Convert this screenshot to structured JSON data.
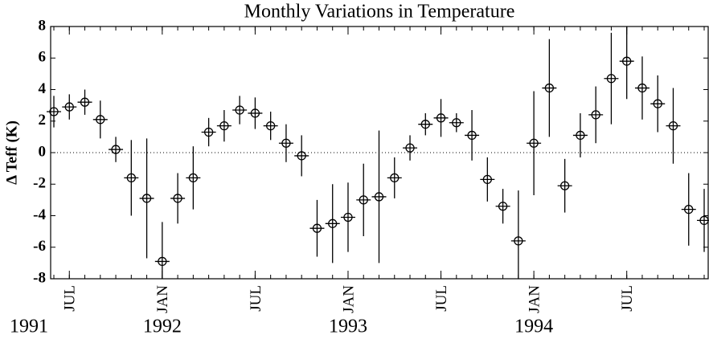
{
  "chart_data": {
    "type": "errorbar_scatter",
    "title": "Monthly Variations in Temperature",
    "ylabel": "Δ Teff (K)",
    "x": [
      "1991-06",
      "1991-07",
      "1991-08",
      "1991-09",
      "1991-10",
      "1991-11",
      "1991-12",
      "1992-01",
      "1992-02",
      "1992-03",
      "1992-04",
      "1992-05",
      "1992-06",
      "1992-07",
      "1992-08",
      "1992-09",
      "1992-10",
      "1992-11",
      "1992-12",
      "1993-01",
      "1993-02",
      "1993-03",
      "1993-04",
      "1993-05",
      "1993-06",
      "1993-07",
      "1993-08",
      "1993-09",
      "1993-10",
      "1993-11",
      "1993-12",
      "1994-01",
      "1994-02",
      "1994-03",
      "1994-04",
      "1994-05",
      "1994-06",
      "1994-07",
      "1994-08",
      "1994-09",
      "1994-10",
      "1994-11",
      "1994-12"
    ],
    "values": [
      2.6,
      2.9,
      3.2,
      2.1,
      0.2,
      -1.6,
      -2.9,
      -6.9,
      -2.9,
      -1.6,
      1.3,
      1.7,
      2.7,
      2.5,
      1.7,
      0.6,
      -0.2,
      -4.8,
      -4.5,
      -4.1,
      -3.0,
      -2.8,
      -1.6,
      0.3,
      1.8,
      2.2,
      1.9,
      1.1,
      -1.7,
      -3.4,
      -5.6,
      0.6,
      4.1,
      -2.1,
      1.1,
      2.4,
      4.7,
      5.8,
      4.1,
      3.1,
      1.7,
      -3.6,
      -4.3
    ],
    "errors": [
      1.0,
      0.8,
      0.8,
      1.2,
      0.8,
      2.4,
      3.8,
      2.5,
      1.6,
      2.0,
      0.9,
      1.0,
      0.9,
      1.0,
      0.9,
      1.2,
      1.3,
      1.8,
      2.5,
      2.2,
      2.3,
      4.2,
      1.3,
      0.8,
      0.7,
      1.2,
      0.6,
      1.6,
      1.4,
      1.1,
      3.2,
      3.3,
      3.1,
      1.7,
      1.4,
      1.8,
      2.9,
      2.4,
      2.0,
      1.8,
      2.4,
      2.3,
      2.0
    ],
    "color": "#000000",
    "xlim": [
      "1991-06",
      "1994-12"
    ],
    "xticks": [
      {
        "value": "1991-07",
        "label": "JUL"
      },
      {
        "value": "1992-01",
        "label": "JAN"
      },
      {
        "value": "1992-07",
        "label": "JUL"
      },
      {
        "value": "1993-01",
        "label": "JAN"
      },
      {
        "value": "1993-07",
        "label": "JUL"
      },
      {
        "value": "1994-01",
        "label": "JAN"
      },
      {
        "value": "1994-07",
        "label": "JUL"
      }
    ],
    "year_labels": [
      {
        "value": "1991-01",
        "label": "1991"
      },
      {
        "value": "1992-01",
        "label": "1992"
      },
      {
        "value": "1993-01",
        "label": "1993"
      },
      {
        "value": "1994-01",
        "label": "1994"
      }
    ],
    "ylim": [
      -8,
      8
    ],
    "yticks": [
      -8,
      -6,
      -4,
      -2,
      0,
      2,
      4,
      6,
      8
    ],
    "zero_line": true
  }
}
